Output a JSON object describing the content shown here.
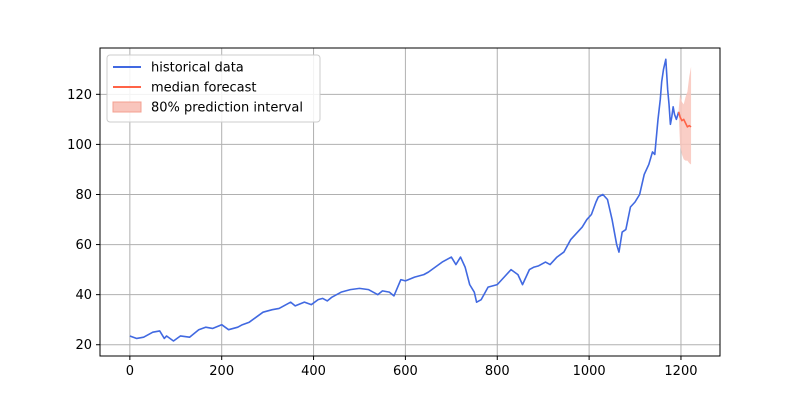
{
  "chart_data": {
    "type": "line",
    "title": "",
    "xlabel": "",
    "ylabel": "",
    "xlim": [
      -65,
      1285
    ],
    "ylim": [
      15.5,
      138.5
    ],
    "grid": true,
    "legend_position": "top-left",
    "x_ticks": [
      0,
      200,
      400,
      600,
      800,
      1000,
      1200
    ],
    "y_ticks": [
      20,
      40,
      60,
      80,
      100,
      120
    ],
    "colors": {
      "historical": "#4169e1",
      "forecast": "#ff6347",
      "interval_fill": "#f9c5bc"
    },
    "legend": [
      {
        "key": "historical",
        "label": "historical data",
        "kind": "line"
      },
      {
        "key": "forecast",
        "label": "median forecast",
        "kind": "line"
      },
      {
        "key": "interval",
        "label": "80% prediction interval",
        "kind": "patch"
      }
    ],
    "series": [
      {
        "name": "historical data",
        "x": [
          0,
          15,
          30,
          50,
          65,
          75,
          80,
          95,
          110,
          130,
          150,
          165,
          180,
          200,
          215,
          225,
          235,
          245,
          260,
          275,
          290,
          310,
          325,
          340,
          350,
          360,
          380,
          395,
          410,
          420,
          430,
          440,
          460,
          480,
          500,
          520,
          530,
          540,
          550,
          565,
          575,
          590,
          600,
          620,
          640,
          650,
          665,
          680,
          690,
          700,
          710,
          720,
          730,
          740,
          750,
          755,
          765,
          780,
          800,
          815,
          830,
          845,
          855,
          870,
          880,
          890,
          905,
          915,
          930,
          945,
          960,
          975,
          985,
          995,
          1005,
          1015,
          1020,
          1030,
          1040,
          1050,
          1055,
          1060,
          1065,
          1072,
          1080,
          1090,
          1100,
          1110,
          1120,
          1130,
          1138,
          1143,
          1150,
          1155,
          1158,
          1162,
          1167,
          1171,
          1174,
          1177,
          1180,
          1183,
          1186,
          1190,
          1195
        ],
        "values": [
          23.5,
          22.5,
          23,
          25,
          25.5,
          22.5,
          23.5,
          21.5,
          23.5,
          23,
          26,
          27,
          26.5,
          28,
          26,
          26.5,
          27,
          28,
          29,
          31,
          33,
          34,
          34.5,
          36,
          37,
          35.5,
          37,
          36,
          38,
          38.5,
          37.5,
          39,
          41,
          42,
          42.5,
          42,
          41,
          40,
          41.5,
          41,
          39.5,
          46,
          45.5,
          47,
          48,
          49,
          51,
          53,
          54,
          55,
          52,
          55,
          51,
          44,
          41,
          37,
          38,
          43,
          44,
          47,
          50,
          48,
          44,
          50,
          51,
          51.5,
          53,
          52,
          55,
          57,
          62,
          65,
          67,
          70,
          72,
          77,
          79,
          80,
          78,
          70,
          65,
          60,
          57,
          65,
          66,
          75,
          77,
          80,
          88,
          92,
          97,
          96,
          110,
          118,
          125,
          130,
          134,
          122,
          116,
          108,
          111,
          115,
          112,
          110,
          113
        ]
      },
      {
        "name": "median forecast",
        "x": [
          1195,
          1198,
          1202,
          1206,
          1210,
          1214,
          1218,
          1222
        ],
        "values": [
          113,
          111,
          109.5,
          110,
          108.5,
          107,
          107.5,
          107
        ]
      }
    ],
    "interval": {
      "name": "80% prediction interval",
      "x": [
        1195,
        1198,
        1202,
        1206,
        1210,
        1214,
        1218,
        1222
      ],
      "lower": [
        112,
        100,
        96,
        94,
        93.5,
        93.5,
        92.5,
        92
      ],
      "upper": [
        114,
        120,
        117,
        116,
        119,
        121,
        127,
        131
      ]
    }
  }
}
